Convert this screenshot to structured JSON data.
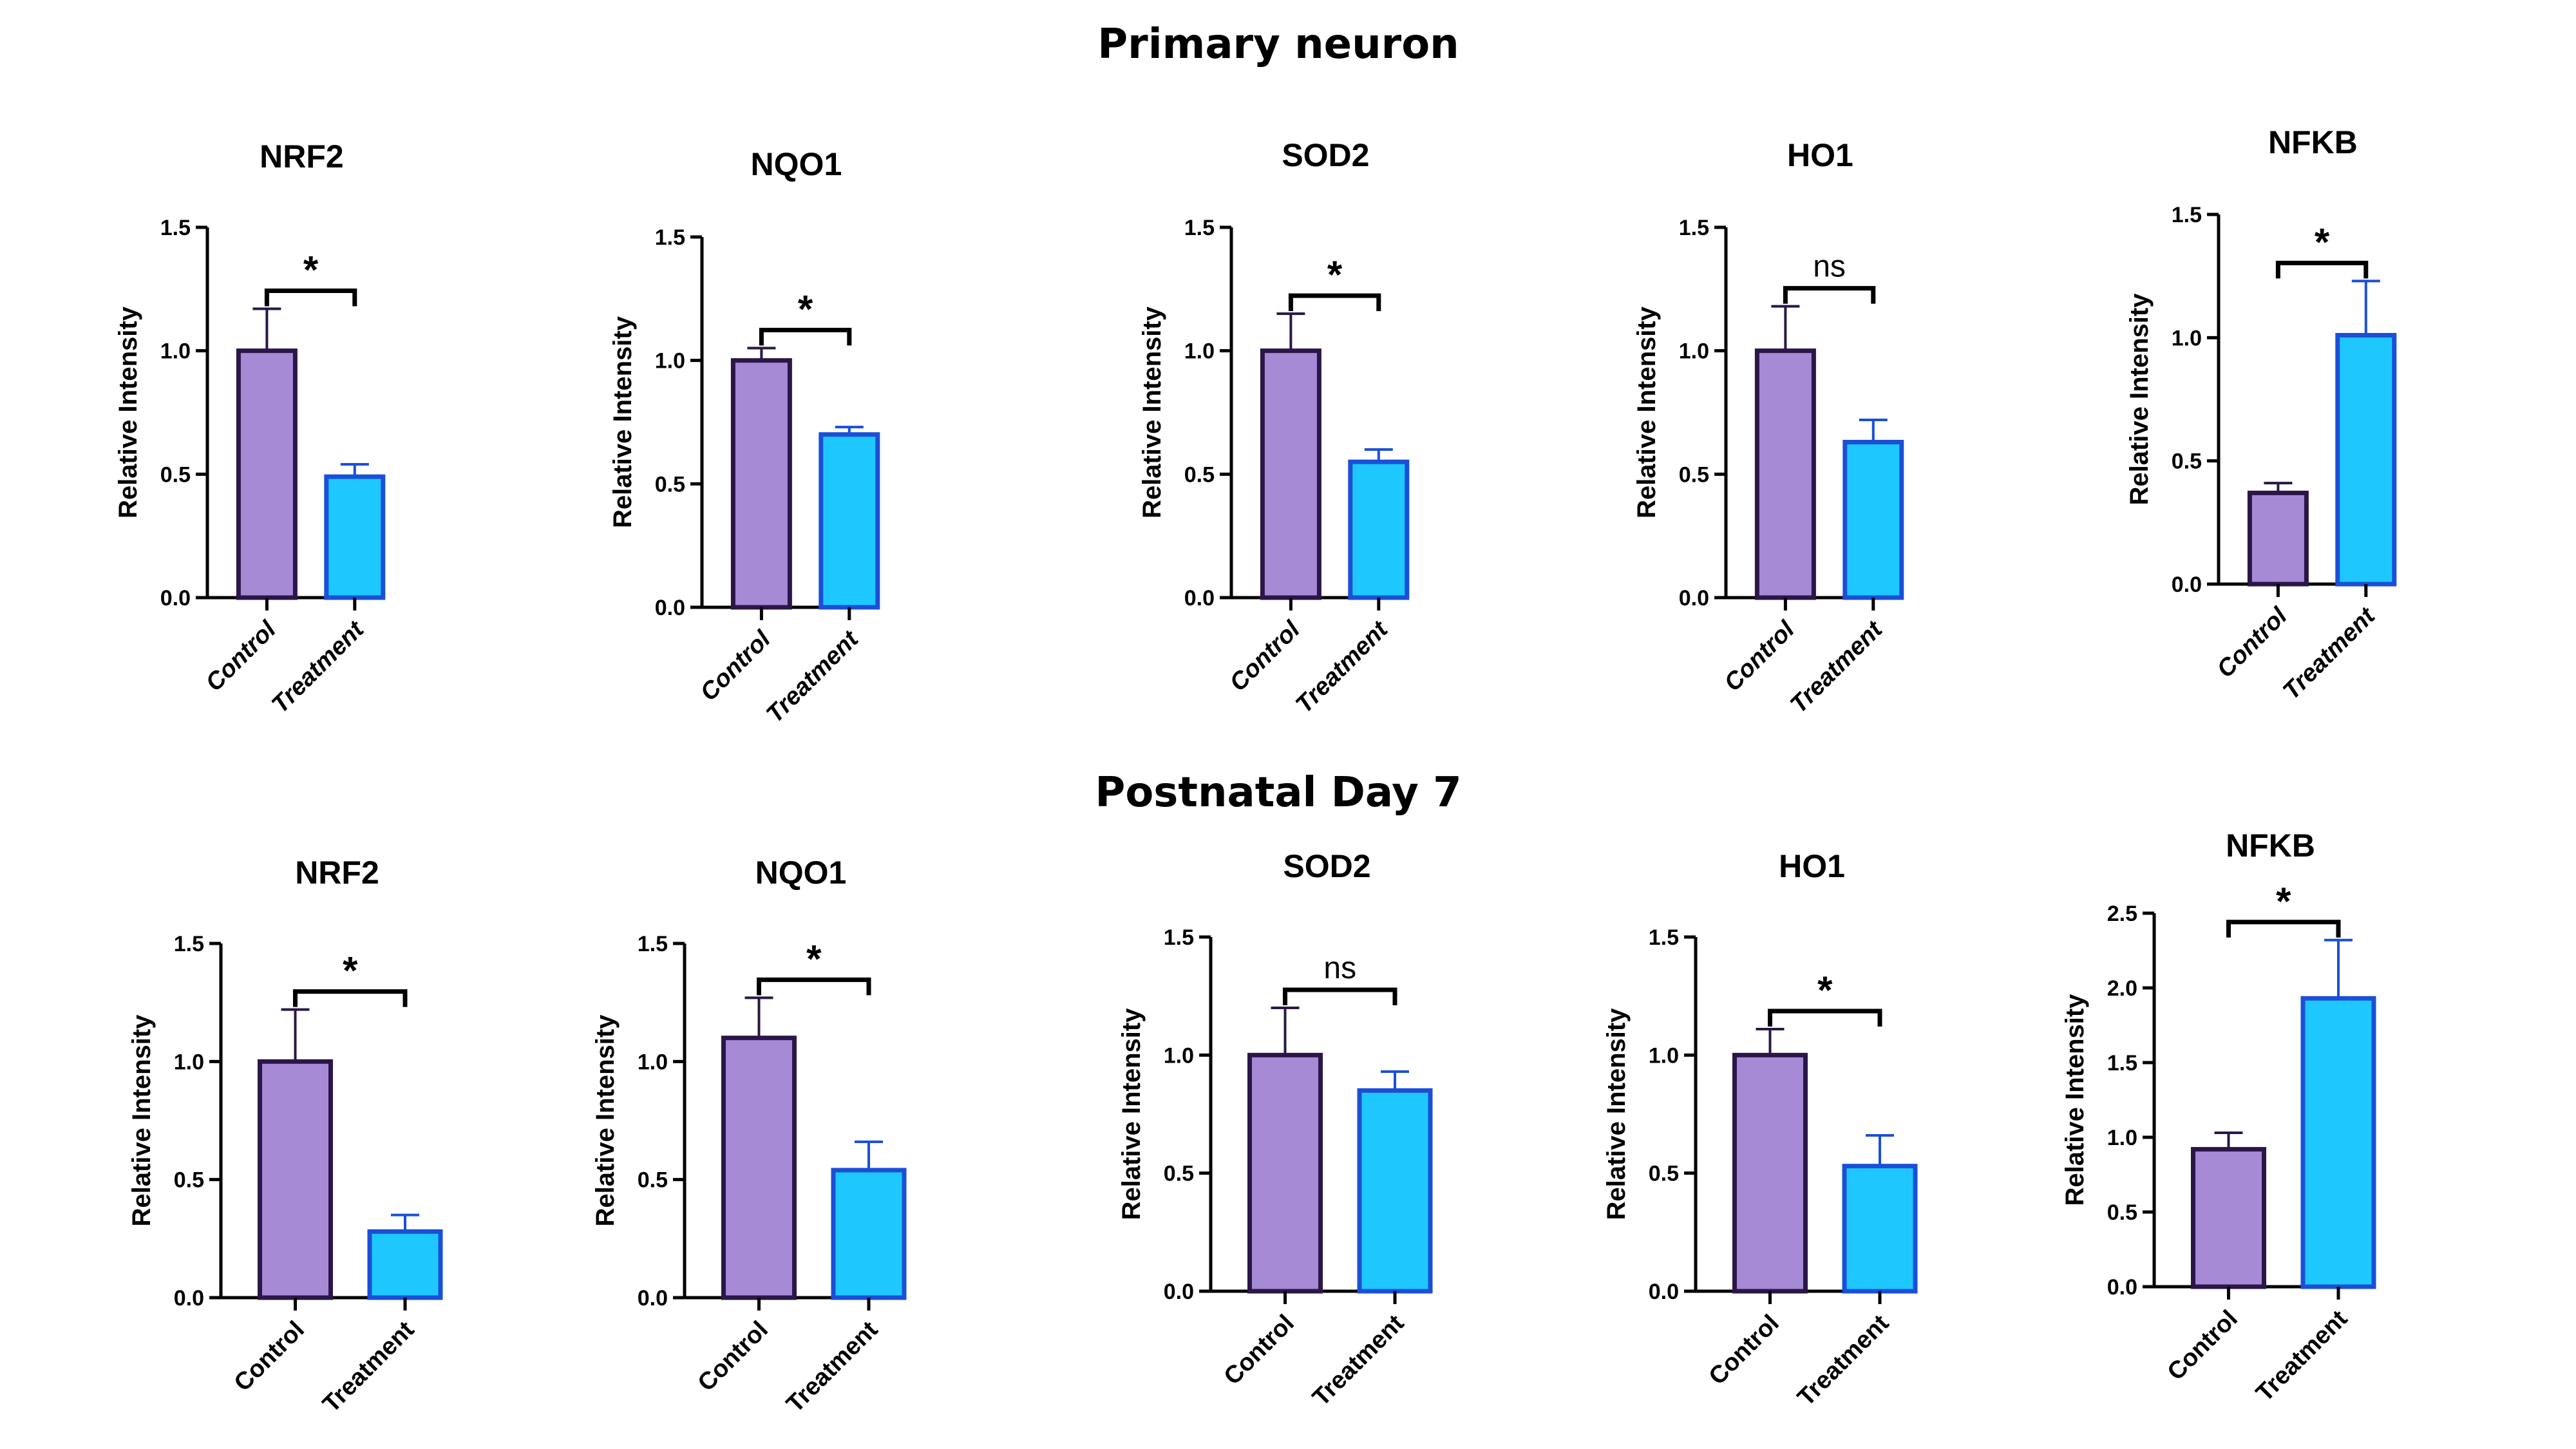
{
  "row_titles": [
    "Primary neuron",
    "Postnatal Day 7"
  ],
  "colors": {
    "control_fill": "#a68ad6",
    "control_edge": "#2a1747",
    "treatment_fill": "#1ec8ff",
    "treatment_edge": "#1b4fd8",
    "axis": "#000000"
  },
  "chart_data": [
    {
      "type": "bar",
      "row": "Primary neuron",
      "title": "NRF2",
      "categories": [
        "Control",
        "Treatment"
      ],
      "values": [
        1.0,
        0.49
      ],
      "errors": [
        0.17,
        0.05
      ],
      "ylabel": "Relative Intensity",
      "ylim": [
        0,
        1.5
      ],
      "yticks": [
        "0.0",
        "0.5",
        "1.0",
        "1.5"
      ],
      "significance": "*"
    },
    {
      "type": "bar",
      "row": "Primary neuron",
      "title": "NQO1",
      "categories": [
        "Control",
        "Treatment"
      ],
      "values": [
        1.0,
        0.7
      ],
      "errors": [
        0.05,
        0.03
      ],
      "ylabel": "Relative Intensity",
      "ylim": [
        0,
        1.5
      ],
      "yticks": [
        "0.0",
        "0.5",
        "1.0",
        "1.5"
      ],
      "significance": "*"
    },
    {
      "type": "bar",
      "row": "Primary neuron",
      "title": "SOD2",
      "categories": [
        "Control",
        "Treatment"
      ],
      "values": [
        1.0,
        0.55
      ],
      "errors": [
        0.15,
        0.05
      ],
      "ylabel": "Relative Intensity",
      "ylim": [
        0,
        1.5
      ],
      "yticks": [
        "0.0",
        "0.5",
        "1.0",
        "1.5"
      ],
      "significance": "*"
    },
    {
      "type": "bar",
      "row": "Primary neuron",
      "title": "HO1",
      "categories": [
        "Control",
        "Treatment"
      ],
      "values": [
        1.0,
        0.63
      ],
      "errors": [
        0.18,
        0.09
      ],
      "ylabel": "Relative Intensity",
      "ylim": [
        0,
        1.5
      ],
      "yticks": [
        "0.0",
        "0.5",
        "1.0",
        "1.5"
      ],
      "significance": "ns"
    },
    {
      "type": "bar",
      "row": "Primary neuron",
      "title": "NFKB",
      "categories": [
        "Control",
        "Treatment"
      ],
      "values": [
        0.37,
        1.01
      ],
      "errors": [
        0.04,
        0.22
      ],
      "ylabel": "Relative Intensity",
      "ylim": [
        0,
        1.5
      ],
      "yticks": [
        "0.0",
        "0.5",
        "1.0",
        "1.5"
      ],
      "significance": "*"
    },
    {
      "type": "bar",
      "row": "Postnatal Day 7",
      "title": "NRF2",
      "categories": [
        "Control",
        "Treatment"
      ],
      "values": [
        1.0,
        0.28
      ],
      "errors": [
        0.22,
        0.07
      ],
      "ylabel": "Relative Intensity",
      "ylim": [
        0,
        1.5
      ],
      "yticks": [
        "0.0",
        "0.5",
        "1.0",
        "1.5"
      ],
      "significance": "*"
    },
    {
      "type": "bar",
      "row": "Postnatal Day 7",
      "title": "NQO1",
      "categories": [
        "Control",
        "Treatment"
      ],
      "values": [
        1.1,
        0.54
      ],
      "errors": [
        0.17,
        0.12
      ],
      "ylabel": "Relative Intensity",
      "ylim": [
        0,
        1.5
      ],
      "yticks": [
        "0.0",
        "0.5",
        "1.0",
        "1.5"
      ],
      "significance": "*"
    },
    {
      "type": "bar",
      "row": "Postnatal Day 7",
      "title": "SOD2",
      "categories": [
        "Control",
        "Treatment"
      ],
      "values": [
        1.0,
        0.85
      ],
      "errors": [
        0.2,
        0.08
      ],
      "ylabel": "Relative Intensity",
      "ylim": [
        0,
        1.5
      ],
      "yticks": [
        "0.0",
        "0.5",
        "1.0",
        "1.5"
      ],
      "significance": "ns"
    },
    {
      "type": "bar",
      "row": "Postnatal Day 7",
      "title": "HO1",
      "categories": [
        "Control",
        "Treatment"
      ],
      "values": [
        1.0,
        0.53
      ],
      "errors": [
        0.11,
        0.13
      ],
      "ylabel": "Relative Intensity",
      "ylim": [
        0,
        1.5
      ],
      "yticks": [
        "0.0",
        "0.5",
        "1.0",
        "1.5"
      ],
      "significance": "*"
    },
    {
      "type": "bar",
      "row": "Postnatal Day 7",
      "title": "NFKB",
      "categories": [
        "Control",
        "Treatment"
      ],
      "values": [
        0.92,
        1.93
      ],
      "errors": [
        0.11,
        0.39
      ],
      "ylabel": "Relative Intensity",
      "ylim": [
        0,
        2.5
      ],
      "yticks": [
        "0.0",
        "0.5",
        "1.0",
        "1.5",
        "2.0",
        "2.5"
      ],
      "significance": "*"
    }
  ]
}
